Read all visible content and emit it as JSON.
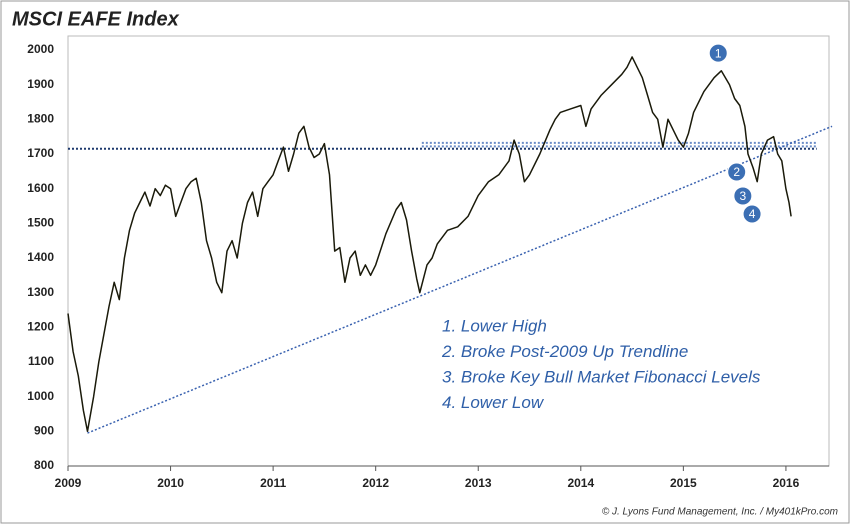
{
  "chart_data": {
    "type": "line",
    "title": "MSCI EAFE Index",
    "color": "#1a1a0a",
    "x": [
      2009.0,
      2009.05,
      2009.1,
      2009.15,
      2009.19,
      2009.25,
      2009.3,
      2009.35,
      2009.4,
      2009.45,
      2009.5,
      2009.55,
      2009.6,
      2009.65,
      2009.7,
      2009.75,
      2009.8,
      2009.85,
      2009.9,
      2009.95,
      2010.0,
      2010.05,
      2010.1,
      2010.15,
      2010.2,
      2010.25,
      2010.3,
      2010.35,
      2010.4,
      2010.45,
      2010.5,
      2010.55,
      2010.6,
      2010.65,
      2010.7,
      2010.75,
      2010.8,
      2010.85,
      2010.9,
      2010.95,
      2011.0,
      2011.05,
      2011.1,
      2011.15,
      2011.2,
      2011.25,
      2011.3,
      2011.35,
      2011.4,
      2011.45,
      2011.5,
      2011.55,
      2011.6,
      2011.65,
      2011.7,
      2011.75,
      2011.8,
      2011.85,
      2011.9,
      2011.95,
      2012.0,
      2012.1,
      2012.2,
      2012.25,
      2012.3,
      2012.35,
      2012.4,
      2012.43,
      2012.5,
      2012.55,
      2012.6,
      2012.7,
      2012.8,
      2012.9,
      2013.0,
      2013.1,
      2013.2,
      2013.3,
      2013.35,
      2013.4,
      2013.45,
      2013.5,
      2013.6,
      2013.7,
      2013.75,
      2013.8,
      2013.9,
      2014.0,
      2014.05,
      2014.1,
      2014.2,
      2014.3,
      2014.4,
      2014.45,
      2014.5,
      2014.55,
      2014.6,
      2014.65,
      2014.7,
      2014.75,
      2014.8,
      2014.85,
      2014.9,
      2014.95,
      2015.0,
      2015.05,
      2015.1,
      2015.2,
      2015.3,
      2015.37,
      2015.45,
      2015.5,
      2015.55,
      2015.6,
      2015.63,
      2015.68,
      2015.72,
      2015.76,
      2015.82,
      2015.88,
      2015.92,
      2015.96,
      2016.0,
      2016.03,
      2016.05
    ],
    "values": [
      1240,
      1130,
      1060,
      960,
      900,
      1000,
      1100,
      1180,
      1260,
      1330,
      1280,
      1400,
      1480,
      1530,
      1560,
      1590,
      1550,
      1600,
      1580,
      1610,
      1600,
      1520,
      1560,
      1600,
      1620,
      1630,
      1560,
      1450,
      1400,
      1330,
      1300,
      1420,
      1450,
      1400,
      1500,
      1560,
      1590,
      1520,
      1600,
      1620,
      1640,
      1680,
      1720,
      1650,
      1700,
      1760,
      1780,
      1720,
      1690,
      1700,
      1730,
      1640,
      1420,
      1430,
      1330,
      1400,
      1420,
      1350,
      1380,
      1350,
      1380,
      1470,
      1540,
      1560,
      1510,
      1420,
      1340,
      1300,
      1380,
      1400,
      1440,
      1480,
      1490,
      1520,
      1580,
      1620,
      1640,
      1680,
      1740,
      1700,
      1620,
      1640,
      1700,
      1770,
      1800,
      1820,
      1830,
      1840,
      1780,
      1830,
      1870,
      1900,
      1930,
      1950,
      1980,
      1950,
      1920,
      1870,
      1820,
      1800,
      1720,
      1800,
      1770,
      1740,
      1720,
      1760,
      1820,
      1880,
      1920,
      1940,
      1900,
      1860,
      1840,
      1780,
      1700,
      1660,
      1620,
      1700,
      1740,
      1750,
      1700,
      1680,
      1600,
      1560,
      1520
    ],
    "xlim": [
      2009,
      2016.42
    ],
    "ylim": [
      800,
      2000
    ],
    "xticks": [
      2009,
      2010,
      2011,
      2012,
      2013,
      2014,
      2015,
      2016
    ],
    "yticks": [
      800,
      900,
      1000,
      1100,
      1200,
      1300,
      1400,
      1500,
      1600,
      1700,
      1800,
      1900,
      2000
    ],
    "hlines": [
      {
        "y": 1715,
        "x": [
          2009,
          2016.3
        ],
        "color": "#1f3a6e"
      },
      {
        "y": 1722,
        "x": [
          2012.45,
          2016.3
        ],
        "color": "#6a8cc7"
      },
      {
        "y": 1732,
        "x": [
          2012.45,
          2016.3
        ],
        "color": "#6a8cc7"
      }
    ],
    "trendline": {
      "x": [
        2009.19,
        2016.45
      ],
      "y": [
        895,
        1780
      ],
      "color": "#3a62b0"
    },
    "markers": [
      {
        "label": "1",
        "x": 2015.34,
        "y": 1991
      },
      {
        "label": "2",
        "x": 2015.52,
        "y": 1648
      },
      {
        "label": "3",
        "x": 2015.58,
        "y": 1579
      },
      {
        "label": "4",
        "x": 2015.67,
        "y": 1527
      }
    ],
    "notes": [
      "1.  Lower High",
      "2.  Broke Post-2009 Up Trendline",
      "3.  Broke Key Bull Market Fibonacci Levels",
      "4.  Lower Low"
    ],
    "credit": "© J. Lyons Fund Management, Inc. / My401kPro.com"
  }
}
